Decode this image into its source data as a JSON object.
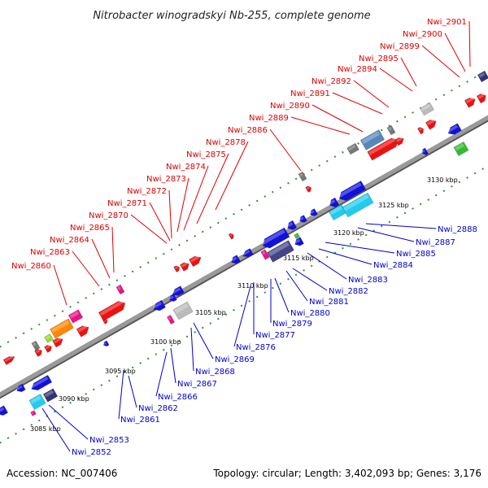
{
  "title": "Nitrobacter winogradskyi Nb-255, complete genome",
  "footer": {
    "accession": "Accession: NC_007406",
    "summary": "Topology: circular; Length: 3,402,093 bp; Genes: 3,176"
  },
  "colors": {
    "backbone": "#8c8c8c",
    "forward_label": "#dd0000",
    "reverse_label": "#0000cc",
    "dots": "#3a8a3a"
  },
  "ticks": [
    {
      "label": "3085 kbp",
      "pos": 3085
    },
    {
      "label": "3090 kbp",
      "pos": 3090
    },
    {
      "label": "3095 kbp",
      "pos": 3095
    },
    {
      "label": "3100 kbp",
      "pos": 3100
    },
    {
      "label": "3105 kbp",
      "pos": 3105
    },
    {
      "label": "3110 kbp",
      "pos": 3110
    },
    {
      "label": "3115 kbp",
      "pos": 3115
    },
    {
      "label": "3120 kbp",
      "pos": 3120
    },
    {
      "label": "3125 kbp",
      "pos": 3125
    },
    {
      "label": "3130 kbp",
      "pos": 3130
    }
  ],
  "forward_labels": [
    "Nwi_2860",
    "Nwi_2863",
    "Nwi_2864",
    "Nwi_2865",
    "Nwi_2870",
    "Nwi_2871",
    "Nwi_2872",
    "Nwi_2873",
    "Nwi_2874",
    "Nwi_2875",
    "Nwi_2878",
    "Nwi_2886",
    "Nwi_2889",
    "Nwi_2890",
    "Nwi_2891",
    "Nwi_2892",
    "Nwi_2894",
    "Nwi_2895",
    "Nwi_2899",
    "Nwi_2900",
    "Nwi_2901"
  ],
  "reverse_labels": [
    "Nwi_2852",
    "Nwi_2853",
    "Nwi_2861",
    "Nwi_2862",
    "Nwi_2866",
    "Nwi_2867",
    "Nwi_2868",
    "Nwi_2869",
    "Nwi_2876",
    "Nwi_2877",
    "Nwi_2879",
    "Nwi_2880",
    "Nwi_2881",
    "Nwi_2882",
    "Nwi_2883",
    "Nwi_2884",
    "Nwi_2885",
    "Nwi_2887",
    "Nwi_2888"
  ]
}
